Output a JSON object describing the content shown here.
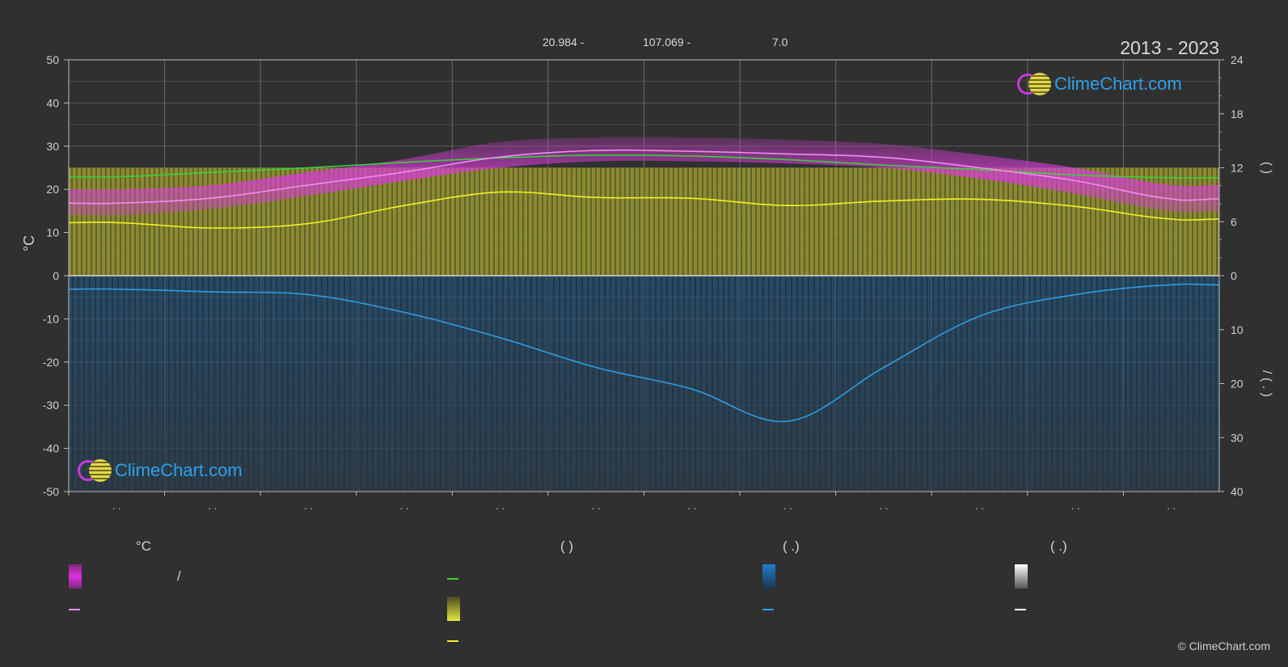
{
  "header": {
    "lat": "20.984 -",
    "lon": "107.069 -",
    "tz": "7.0",
    "period": "2013 - 2023"
  },
  "watermark": {
    "text": "ClimeChart.com"
  },
  "copyright": "© ClimeChart.com",
  "legend": {
    "col1_head": "°C",
    "col2_head": "(          )",
    "col3_head": "(   .)",
    "col4_head": "(   .)",
    "slash": "/"
  },
  "colors": {
    "background": "#303030",
    "temp_band": "#d83cd8",
    "temp_line": "#f08cf0",
    "daylight_line": "#3ccf3c",
    "sunshine_band": "#b8b83a",
    "sunshine_line": "#f0f028",
    "precip_band": "#1f6fae",
    "precip_line": "#2f9be0",
    "snow_line": "#ffffff"
  },
  "chart_data": {
    "type": "area",
    "x_tick_labels": [
      ". .",
      ". .",
      ". .",
      ". .",
      ". .",
      ". .",
      ". .",
      ". .",
      ". .",
      ". .",
      ". .",
      ". ."
    ],
    "left_axis": {
      "label": "°C",
      "ylim": [
        -50,
        50
      ],
      "ticks": [
        50,
        40,
        30,
        20,
        10,
        0,
        -10,
        -20,
        -30,
        -40,
        -50
      ]
    },
    "right_axis_top": {
      "label": "(     )",
      "ylim": [
        0,
        24
      ],
      "ticks": [
        24,
        18,
        12,
        6,
        0
      ]
    },
    "right_axis_bottom": {
      "label": "/     ( . )",
      "ylim": [
        0,
        40
      ],
      "ticks": [
        0,
        10,
        20,
        30,
        40
      ]
    },
    "months_x": [
      0.5,
      1.5,
      2.5,
      3.5,
      4.5,
      5.5,
      6.5,
      7.5,
      8.5,
      9.5,
      10.5,
      11.5
    ],
    "series": [
      {
        "key": "temp_mean",
        "values": [
          16.8,
          18.0,
          21.0,
          24.0,
          27.5,
          29.0,
          28.8,
          28.2,
          27.4,
          25.0,
          22.0,
          17.8
        ]
      },
      {
        "key": "temp_max",
        "values": [
          20,
          21,
          24,
          27,
          31,
          32,
          32,
          31.5,
          30.5,
          28,
          25,
          21
        ]
      },
      {
        "key": "temp_min",
        "values": [
          14,
          15.5,
          18.5,
          22,
          25,
          26.5,
          26.5,
          26,
          25,
          22.5,
          19,
          15
        ]
      },
      {
        "key": "daylight_hours",
        "values": [
          11.0,
          11.5,
          12.0,
          12.6,
          13.1,
          13.4,
          13.3,
          12.9,
          12.3,
          11.8,
          11.2,
          10.9
        ]
      },
      {
        "key": "sunshine_hours",
        "values": [
          5.9,
          5.3,
          5.8,
          7.8,
          9.3,
          8.7,
          8.6,
          7.8,
          8.3,
          8.5,
          7.7,
          6.3
        ]
      },
      {
        "key": "precip_mm_per_day",
        "values": [
          2.5,
          3.0,
          3.5,
          6.8,
          11.5,
          17.0,
          21.0,
          27.0,
          17.0,
          7.5,
          3.5,
          1.7
        ]
      }
    ],
    "grid": true
  }
}
